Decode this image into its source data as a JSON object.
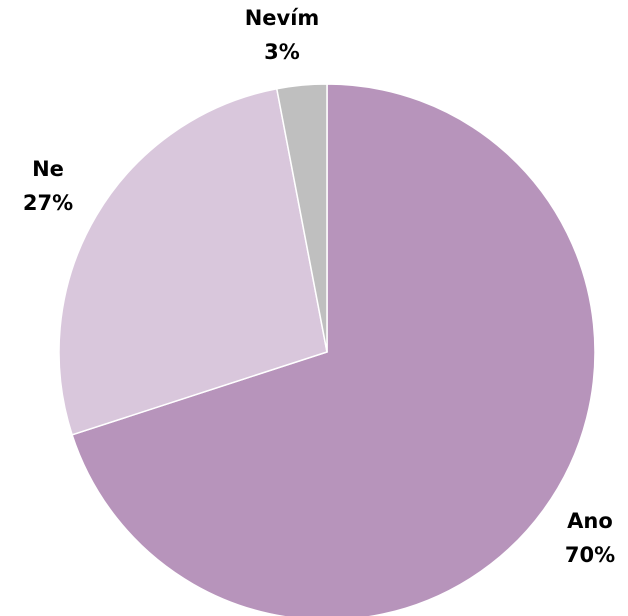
{
  "chart_data": {
    "type": "pie",
    "title": "",
    "slices": [
      {
        "label": "Ano",
        "value": 70,
        "value_label": "70%",
        "color": "#b794bb"
      },
      {
        "label": "Ne",
        "value": 27,
        "value_label": "27%",
        "color": "#d9c7dc"
      },
      {
        "label": "Nevím",
        "value": 3,
        "value_label": "3%",
        "color": "#bfbfbf"
      }
    ],
    "start": "12 o'clock, clockwise",
    "legend": "none"
  }
}
